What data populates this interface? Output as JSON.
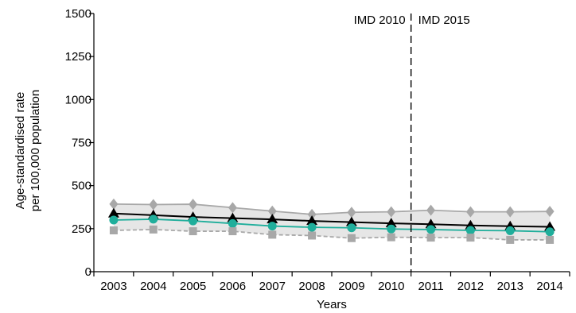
{
  "chart_data": {
    "type": "line",
    "xlabel": "Years",
    "ylabel_lines": [
      "Age-standardised rate",
      "per 100,000 population"
    ],
    "ylim": [
      0,
      1500
    ],
    "yticks": [
      0,
      250,
      500,
      750,
      1000,
      1250,
      1500
    ],
    "x": [
      "2003",
      "2004",
      "2005",
      "2006",
      "2007",
      "2008",
      "2009",
      "2010",
      "2011",
      "2012",
      "2013",
      "2014"
    ],
    "series": [
      {
        "name": "",
        "marker": "diamond",
        "color": "#a8a8a8",
        "values": [
          393,
          390,
          392,
          372,
          352,
          333,
          345,
          348,
          357,
          348,
          348,
          350
        ]
      },
      {
        "name": "",
        "marker": "triangle",
        "color": "#000000",
        "values": [
          338,
          328,
          318,
          311,
          304,
          295,
          288,
          281,
          276,
          269,
          264,
          261
        ]
      },
      {
        "name": "",
        "marker": "circle",
        "color": "#1fae9b",
        "values": [
          300,
          305,
          295,
          280,
          265,
          258,
          255,
          248,
          245,
          240,
          238,
          232
        ]
      },
      {
        "name": "",
        "marker": "square",
        "color": "#a8a8a8",
        "dashed": true,
        "values": [
          240,
          245,
          235,
          235,
          215,
          210,
          195,
          200,
          198,
          198,
          185,
          185
        ]
      }
    ],
    "annotations": [
      {
        "text": "IMD 2010",
        "side": "left"
      },
      {
        "text": "IMD 2015",
        "side": "right"
      }
    ],
    "divider_between": [
      "2010",
      "2011"
    ],
    "grid": false,
    "shaded_band": "between top and bottom series"
  }
}
